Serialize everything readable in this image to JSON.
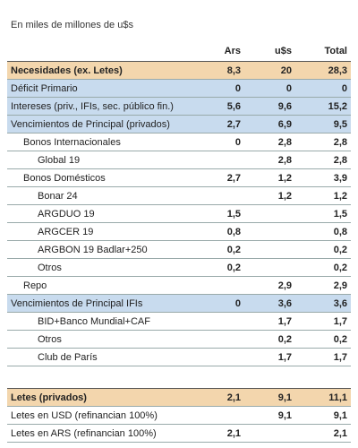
{
  "subtitle": "En miles de millones de u$s",
  "table": {
    "header": [
      "Ars",
      "u$s",
      "Total"
    ],
    "rows": [
      [
        "Necesidades (ex. Letes)",
        "8,3",
        "20",
        "28,3"
      ],
      [
        "Déficit Primario",
        "0",
        "0",
        "0"
      ],
      [
        "Intereses (priv., IFIs, sec. público fin.)",
        "5,6",
        "9,6",
        "15,2"
      ],
      [
        "Vencimientos de Principal (privados)",
        "2,7",
        "6,9",
        "9,5"
      ],
      [
        "Bonos Internacionales",
        "0",
        "2,8",
        "2,8"
      ],
      [
        "Global 19",
        null,
        "2,8",
        "2,8"
      ],
      [
        "Bonos Domésticos",
        "2,7",
        "1,2",
        "3,9"
      ],
      [
        "Bonar 24",
        null,
        "1,2",
        "1,2"
      ],
      [
        "ARGDUO 19",
        "1,5",
        null,
        "1,5"
      ],
      [
        "ARGCER 19",
        "0,8",
        null,
        "0,8"
      ],
      [
        "ARGBON 19 Badlar+250",
        "0,2",
        null,
        "0,2"
      ],
      [
        "Otros",
        "0,2",
        null,
        "0,2"
      ],
      [
        "Repo",
        null,
        "2,9",
        "2,9"
      ],
      [
        "Vencimientos de Principal IFIs",
        "0",
        "3,6",
        "3,6"
      ],
      [
        "BID+Banco Mundial+CAF",
        null,
        "1,7",
        "1,7"
      ],
      [
        "Otros",
        null,
        "0,2",
        "0,2"
      ],
      [
        "Club de París",
        null,
        "1,7",
        "1,7"
      ],
      [
        "Letes (privados)",
        "2,1",
        "9,1",
        "11,1"
      ],
      [
        "Letes en USD (refinancian 100%)",
        null,
        "9,1",
        "9,1"
      ],
      [
        "Letes en ARS (refinancian 100%)",
        "2,1",
        null,
        "2,1"
      ]
    ]
  }
}
